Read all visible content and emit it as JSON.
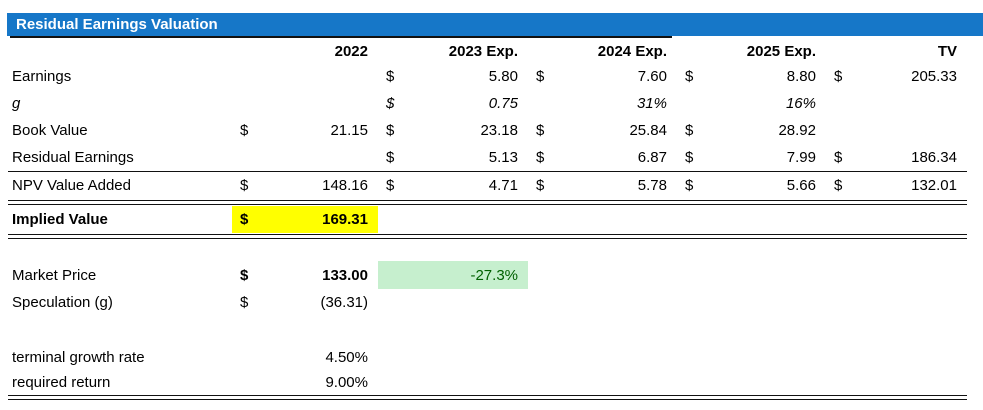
{
  "title": "Residual Earnings Valuation",
  "colors": {
    "title_bg": "#1677C8",
    "title_text": "#FFFFFF",
    "highlight_yellow": "#FFFF00",
    "good_cell_bg": "#C6EFCE",
    "good_cell_text": "#006100"
  },
  "columns": [
    "",
    "2022",
    "2023 Exp.",
    "2024 Exp.",
    "2025 Exp.",
    "TV"
  ],
  "rows": {
    "earnings": {
      "label": "Earnings",
      "y2023": {
        "d": "$",
        "v": "5.80"
      },
      "y2024": {
        "d": "$",
        "v": "7.60"
      },
      "y2025": {
        "d": "$",
        "v": "8.80"
      },
      "tv": {
        "d": "$",
        "v": "205.33"
      }
    },
    "g": {
      "label": "g",
      "y2023": {
        "d": "$",
        "v": "0.75"
      },
      "y2024": {
        "d": "",
        "v": "31%"
      },
      "y2025": {
        "d": "",
        "v": "16%"
      }
    },
    "book_value": {
      "label": "Book Value",
      "y2022": {
        "d": "$",
        "v": "21.15"
      },
      "y2023": {
        "d": "$",
        "v": "23.18"
      },
      "y2024": {
        "d": "$",
        "v": "25.84"
      },
      "y2025": {
        "d": "$",
        "v": "28.92"
      }
    },
    "residual_earnings": {
      "label": "Residual Earnings",
      "y2023": {
        "d": "$",
        "v": "5.13"
      },
      "y2024": {
        "d": "$",
        "v": "6.87"
      },
      "y2025": {
        "d": "$",
        "v": "7.99"
      },
      "tv": {
        "d": "$",
        "v": "186.34"
      }
    },
    "npv_value_added": {
      "label": "NPV Value Added",
      "y2022": {
        "d": "$",
        "v": "148.16"
      },
      "y2023": {
        "d": "$",
        "v": "4.71"
      },
      "y2024": {
        "d": "$",
        "v": "5.78"
      },
      "y2025": {
        "d": "$",
        "v": "5.66"
      },
      "tv": {
        "d": "$",
        "v": "132.01"
      }
    },
    "implied_value": {
      "label": "Implied Value",
      "y2022": {
        "d": "$",
        "v": "169.31"
      }
    },
    "market_price": {
      "label": "Market Price",
      "y2022": {
        "d": "$",
        "v": "133.00"
      },
      "delta": "-27.3%"
    },
    "speculation": {
      "label": "Speculation (g)",
      "y2022": {
        "d": "$",
        "v": "(36.31)"
      }
    },
    "terminal_growth": {
      "label": "terminal growth rate",
      "value": "4.50%"
    },
    "required_return": {
      "label": "required return",
      "value": "9.00%"
    }
  }
}
